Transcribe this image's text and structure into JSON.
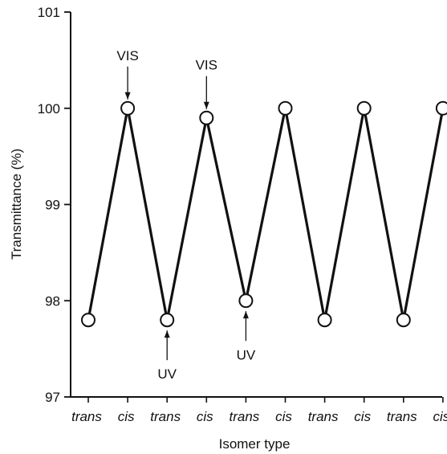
{
  "chart_data": {
    "type": "line",
    "title": "",
    "xlabel": "Isomer type",
    "ylabel": "Transmittance (%)",
    "ylim": [
      97,
      101
    ],
    "yticks": [
      "97",
      "98",
      "99",
      "100",
      "101"
    ],
    "categories": [
      "trans",
      "cis",
      "trans",
      "cis",
      "trans",
      "cis",
      "trans",
      "cis",
      "trans",
      "cis"
    ],
    "series": [
      {
        "values": [
          97.8,
          100.0,
          97.8,
          99.9,
          98.0,
          100.0,
          97.8,
          100.0,
          97.8,
          100.0
        ]
      }
    ],
    "grid": false,
    "marker": "open-circle",
    "line_color": "#111111",
    "annotations": [
      {
        "text": "VIS",
        "category_index": 1,
        "direction": "down"
      },
      {
        "text": "VIS",
        "category_index": 3,
        "direction": "down"
      },
      {
        "text": "UV",
        "category_index": 2,
        "direction": "up"
      },
      {
        "text": "UV",
        "category_index": 4,
        "direction": "up"
      }
    ]
  }
}
